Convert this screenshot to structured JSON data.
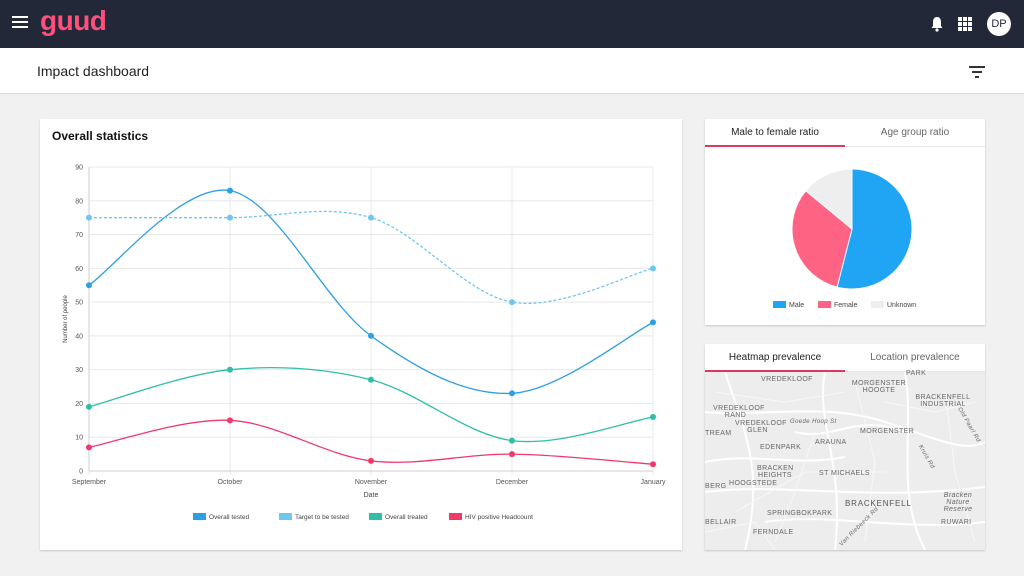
{
  "header": {
    "logo_text": "guud",
    "avatar_initials": "DP",
    "colors": {
      "bar": "#232839",
      "logo": "#ff4f7b"
    }
  },
  "subheader": {
    "title": "Impact dashboard"
  },
  "stats_card": {
    "title": "Overall statistics"
  },
  "chart_data": {
    "type": "line",
    "x": [
      "September",
      "October",
      "November",
      "December",
      "January"
    ],
    "xlabel": "Date",
    "ylabel": "Number of people",
    "ylim": [
      0,
      90
    ],
    "yticks": [
      0,
      10,
      20,
      30,
      40,
      50,
      60,
      70,
      80,
      90
    ],
    "grid": true,
    "legend_position": "bottom",
    "series": [
      {
        "name": "Overall tested",
        "values": [
          55,
          83,
          40,
          23,
          44
        ],
        "color": "#2d9fe3",
        "dashed": false
      },
      {
        "name": "Target to be tested",
        "values": [
          75,
          75,
          75,
          50,
          60
        ],
        "color": "#6ec6f2",
        "dashed": true
      },
      {
        "name": "Overall treated",
        "values": [
          19,
          30,
          27,
          9,
          16
        ],
        "color": "#2fbfa8",
        "dashed": false
      },
      {
        "name": "HIV positive Headcount",
        "values": [
          7,
          15,
          3,
          5,
          2
        ],
        "color": "#f0386b",
        "dashed": false
      }
    ]
  },
  "ratio_card": {
    "tabs": [
      "Male to female ratio",
      "Age group ratio"
    ],
    "active_tab": 0,
    "pie": {
      "type": "pie",
      "slices": [
        {
          "name": "Male",
          "value": 54,
          "color": "#1fa5f3"
        },
        {
          "name": "Female",
          "value": 32,
          "color": "#ff6384"
        },
        {
          "name": "Unknown",
          "value": 14,
          "color": "#eeeeee"
        }
      ],
      "legend_position": "bottom"
    }
  },
  "map_card": {
    "tabs": [
      "Heatmap prevalence",
      "Location prevalence"
    ],
    "active_tab": 0,
    "labels": {
      "vredekloof": "VREDEKLOOF",
      "park": "PARK",
      "morgenster_hoogte": "MORGENSTER HOOGTE",
      "brackenfell_industrial": "BRACKENFELL INDUSTRIAL",
      "vredekloof_rand": "VREDEKLOOF RAND",
      "goede_hoop": "Goede Hoop St",
      "vredekloof_glen": "VREDEKLOOF GLEN",
      "treasure": "TREAM",
      "arauna": "ARAUNA",
      "morgenster": "MORGENSTER",
      "edenpark": "EDENPARK",
      "brackenheights": "BRACKEN HEIGHTS",
      "st_michaels": "ST MICHAELS",
      "hoogstede": "HOOGSTEDE",
      "berg": "BERG",
      "brackenfell": "BRACKENFELL",
      "bracken_nature": "Bracken Nature Reserve",
      "springbokpark": "SPRINGBOKPARK",
      "ruwari": "RUWARI",
      "bellair": "BELLAIR",
      "ferndale": "FERNDALE",
      "kruis": "Kruis Rd",
      "old_paarl": "Old Paarl Rd",
      "van_riebeeck": "Van Riebeeck Rd"
    }
  }
}
